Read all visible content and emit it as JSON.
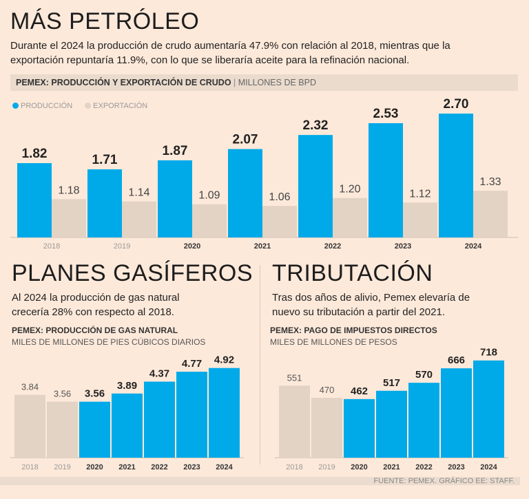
{
  "title": "MÁS PETRÓLEO",
  "description": "Durante el 2024 la producción de crudo aumentaría 47.9% con relación al 2018, mientras que la exportación repuntaría 11.9%, con lo que se liberaría aceite para la refinación nacional.",
  "colors": {
    "blue": "#00aae9",
    "beige": "#e2d3c4"
  },
  "source": "FUENTE: PEMEX. GRÁFICO EE: STAFF.",
  "chart_data": [
    {
      "type": "bar",
      "title": "PEMEX: PRODUCCIÓN Y EXPORTACIÓN DE CRUDO",
      "unit": "MILLONES DE BPD",
      "categories": [
        "2018",
        "2019",
        "2020",
        "2021",
        "2022",
        "2023",
        "2024"
      ],
      "series": [
        {
          "name": "PRODUCCIÓN",
          "values": [
            1.82,
            1.71,
            1.87,
            2.07,
            2.32,
            2.53,
            2.7
          ]
        },
        {
          "name": "EXPORTACIÓN",
          "values": [
            1.18,
            1.14,
            1.09,
            1.06,
            1.2,
            1.12,
            1.33
          ]
        }
      ],
      "legend": "top-left"
    },
    {
      "type": "bar",
      "section_title": "PLANES GASÍFEROS",
      "description": "Al 2024 la producción de gas natural crecería 28% con respecto al 2018.",
      "title": "PEMEX: PRODUCCIÓN DE GAS NATURAL",
      "unit": "MILES DE MILLONES DE PIES CÚBICOS DIARIOS",
      "categories": [
        "2018",
        "2019",
        "2020",
        "2021",
        "2022",
        "2023",
        "2024"
      ],
      "values": [
        3.84,
        3.56,
        3.56,
        3.89,
        4.37,
        4.77,
        4.92
      ]
    },
    {
      "type": "bar",
      "section_title": "TRIBUTACIÓN",
      "description": "Tras dos años de alivio, Pemex elevaría de nuevo su tributación a partir del 2021.",
      "title": "PEMEX: PAGO DE IMPUESTOS DIRECTOS",
      "unit": "MILES DE MILLONES DE PESOS",
      "categories": [
        "2018",
        "2019",
        "2020",
        "2021",
        "2022",
        "2023",
        "2024"
      ],
      "values": [
        551,
        470,
        462,
        517,
        570,
        666,
        718
      ]
    }
  ]
}
